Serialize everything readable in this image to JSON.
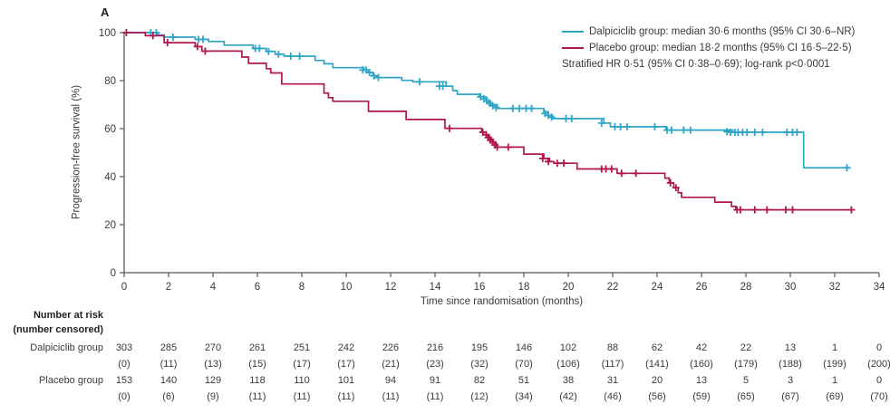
{
  "chart_data": {
    "type": "line",
    "subtype": "kaplan-meier-step",
    "panel_label": "A",
    "xlabel": "Time since randomisation (months)",
    "ylabel": "Progression-free survival (%)",
    "xlim": [
      0,
      34
    ],
    "ylim": [
      0,
      100
    ],
    "xticks": [
      0,
      2,
      4,
      6,
      8,
      10,
      12,
      14,
      16,
      18,
      20,
      22,
      24,
      26,
      28,
      30,
      32,
      34
    ],
    "yticks": [
      0,
      20,
      40,
      60,
      80,
      100
    ],
    "grid": false,
    "legend_position": "top-right",
    "legend": [
      {
        "text": "Dalpiciclib group: median 30·6 months (95% CI 30·6–NR)",
        "swatch_color": "#2fa5c7"
      },
      {
        "text": "Placebo group: median 18·2 months (95% CI 16·5–22·5)",
        "swatch_color": "#b0174f"
      },
      {
        "text": "Stratified HR 0·51 (95% CI 0·38–0·69); log-rank p<0·0001",
        "swatch_color": null
      }
    ],
    "series": [
      {
        "name": "Dalpiciclib group",
        "color": "#2fa5c7",
        "steps": [
          [
            0,
            100
          ],
          [
            1.5,
            99
          ],
          [
            1.8,
            98.1
          ],
          [
            3.2,
            97.2
          ],
          [
            3.8,
            96.3
          ],
          [
            4.5,
            94.8
          ],
          [
            5.8,
            93.4
          ],
          [
            6.4,
            92.2
          ],
          [
            6.8,
            91
          ],
          [
            7.2,
            90.2
          ],
          [
            8.6,
            88.4
          ],
          [
            9,
            87
          ],
          [
            9.4,
            85.4
          ],
          [
            10.8,
            84.4
          ],
          [
            11,
            83.4
          ],
          [
            11.2,
            82
          ],
          [
            11.4,
            81.3
          ],
          [
            12.5,
            80.1
          ],
          [
            13,
            79.5
          ],
          [
            14.5,
            77.7
          ],
          [
            14.8,
            75.8
          ],
          [
            15,
            74.3
          ],
          [
            16,
            73.3
          ],
          [
            16.3,
            71.5
          ],
          [
            16.5,
            70
          ],
          [
            16.8,
            68.4
          ],
          [
            18.9,
            67
          ],
          [
            19.1,
            65.5
          ],
          [
            19.3,
            64.2
          ],
          [
            21.6,
            62.3
          ],
          [
            21.9,
            60.8
          ],
          [
            24.4,
            59.4
          ],
          [
            27.4,
            58.5
          ],
          [
            30.6,
            43.7
          ],
          [
            32.6,
            43.7
          ]
        ],
        "censors": [
          [
            1.2,
            100
          ],
          [
            1.45,
            100
          ],
          [
            2.2,
            98.1
          ],
          [
            3.35,
            97.2
          ],
          [
            3.55,
            97.2
          ],
          [
            5.9,
            93.4
          ],
          [
            6.1,
            93.4
          ],
          [
            6.5,
            92.2
          ],
          [
            6.95,
            91
          ],
          [
            7.5,
            90.2
          ],
          [
            7.9,
            90.2
          ],
          [
            10.75,
            84.4
          ],
          [
            10.9,
            84.4
          ],
          [
            11.05,
            83.4
          ],
          [
            11.25,
            82
          ],
          [
            11.45,
            81.3
          ],
          [
            13.3,
            79.5
          ],
          [
            14.2,
            77.7
          ],
          [
            14.35,
            77.7
          ],
          [
            16.05,
            73.3
          ],
          [
            16.2,
            72.4
          ],
          [
            16.35,
            71.5
          ],
          [
            16.45,
            70.7
          ],
          [
            16.6,
            69.5
          ],
          [
            16.75,
            68.8
          ],
          [
            17.5,
            68.4
          ],
          [
            17.8,
            68.4
          ],
          [
            18.1,
            68.4
          ],
          [
            18.35,
            68.4
          ],
          [
            18.95,
            66.3
          ],
          [
            19.1,
            65.5
          ],
          [
            19.25,
            64.8
          ],
          [
            19.9,
            64.2
          ],
          [
            20.15,
            64.2
          ],
          [
            21.5,
            62.3
          ],
          [
            22.1,
            60.8
          ],
          [
            22.35,
            60.8
          ],
          [
            22.65,
            60.8
          ],
          [
            23.9,
            60.8
          ],
          [
            24.45,
            59.4
          ],
          [
            24.65,
            59.4
          ],
          [
            25.2,
            59.4
          ],
          [
            25.5,
            59.4
          ],
          [
            27.15,
            58.7
          ],
          [
            27.3,
            58.5
          ],
          [
            27.5,
            58.5
          ],
          [
            27.65,
            58.5
          ],
          [
            27.85,
            58.5
          ],
          [
            28.05,
            58.5
          ],
          [
            28.4,
            58.5
          ],
          [
            28.75,
            58.5
          ],
          [
            29.85,
            58.5
          ],
          [
            30.1,
            58.5
          ],
          [
            30.3,
            58.5
          ],
          [
            32.55,
            43.7
          ]
        ]
      },
      {
        "name": "Placebo group",
        "color": "#b0174f",
        "steps": [
          [
            0,
            100
          ],
          [
            0.95,
            98.7
          ],
          [
            1.8,
            95.8
          ],
          [
            3.2,
            94.2
          ],
          [
            3.5,
            92.3
          ],
          [
            5.3,
            89.8
          ],
          [
            5.6,
            87.2
          ],
          [
            6.4,
            85
          ],
          [
            6.6,
            83.2
          ],
          [
            7.1,
            78.6
          ],
          [
            9,
            74.8
          ],
          [
            9.2,
            72.9
          ],
          [
            9.4,
            71.4
          ],
          [
            11,
            67.2
          ],
          [
            12.7,
            63.8
          ],
          [
            14.45,
            60.1
          ],
          [
            16.1,
            58.5
          ],
          [
            16.3,
            57
          ],
          [
            16.45,
            55.5
          ],
          [
            16.6,
            54
          ],
          [
            16.75,
            52.3
          ],
          [
            18,
            49.4
          ],
          [
            18.9,
            47.6
          ],
          [
            19.15,
            46.3
          ],
          [
            19.35,
            45.6
          ],
          [
            20.4,
            43.2
          ],
          [
            22.2,
            41.4
          ],
          [
            24.35,
            39.4
          ],
          [
            24.55,
            37.4
          ],
          [
            24.75,
            35.4
          ],
          [
            24.95,
            33.3
          ],
          [
            25.1,
            31.4
          ],
          [
            26.6,
            29.4
          ],
          [
            27.35,
            27.6
          ],
          [
            27.55,
            26.2
          ],
          [
            32.8,
            26.2
          ]
        ],
        "censors": [
          [
            0.1,
            100
          ],
          [
            1.3,
            98.7
          ],
          [
            1.95,
            95.8
          ],
          [
            3.3,
            94.2
          ],
          [
            3.65,
            92.3
          ],
          [
            14.65,
            60.1
          ],
          [
            16.15,
            58.5
          ],
          [
            16.3,
            57.5
          ],
          [
            16.4,
            56.3
          ],
          [
            16.5,
            55.2
          ],
          [
            16.6,
            54.5
          ],
          [
            16.7,
            53.2
          ],
          [
            16.8,
            52.3
          ],
          [
            17.3,
            52.3
          ],
          [
            18.85,
            47.6
          ],
          [
            19.1,
            46.3
          ],
          [
            19.5,
            45.6
          ],
          [
            19.8,
            45.6
          ],
          [
            21.5,
            43.2
          ],
          [
            21.7,
            43.2
          ],
          [
            21.95,
            43.2
          ],
          [
            22.4,
            41.4
          ],
          [
            23.05,
            41.4
          ],
          [
            24.6,
            37.4
          ],
          [
            24.85,
            35.4
          ],
          [
            27.6,
            26.2
          ],
          [
            27.75,
            26.2
          ],
          [
            28.4,
            26.2
          ],
          [
            28.95,
            26.2
          ],
          [
            29.8,
            26.2
          ],
          [
            30.1,
            26.2
          ],
          [
            32.75,
            26.2
          ]
        ]
      }
    ],
    "at_risk": {
      "header_line1": "Number at risk",
      "header_line2": "(number censored)",
      "timepoints": [
        0,
        2,
        4,
        6,
        8,
        10,
        12,
        14,
        16,
        18,
        20,
        22,
        24,
        26,
        28,
        30,
        32,
        34
      ],
      "rows": [
        {
          "label": "Dalpiciclib group",
          "at_risk": [
            303,
            285,
            270,
            261,
            251,
            242,
            226,
            216,
            195,
            146,
            102,
            88,
            62,
            42,
            22,
            13,
            1,
            0
          ],
          "censored": [
            0,
            11,
            13,
            15,
            17,
            17,
            21,
            23,
            32,
            70,
            106,
            117,
            141,
            160,
            179,
            188,
            199,
            200
          ]
        },
        {
          "label": "Placebo group",
          "at_risk": [
            153,
            140,
            129,
            118,
            110,
            101,
            94,
            91,
            82,
            51,
            38,
            31,
            20,
            13,
            5,
            3,
            1,
            0
          ],
          "censored": [
            0,
            6,
            9,
            11,
            11,
            11,
            11,
            11,
            12,
            34,
            42,
            46,
            56,
            59,
            65,
            67,
            69,
            70
          ]
        }
      ]
    },
    "colors": {
      "axis": "#58585a",
      "text": "#3a3a3a",
      "dalpiciclib": "#2fa5c7",
      "placebo": "#b0174f"
    }
  }
}
